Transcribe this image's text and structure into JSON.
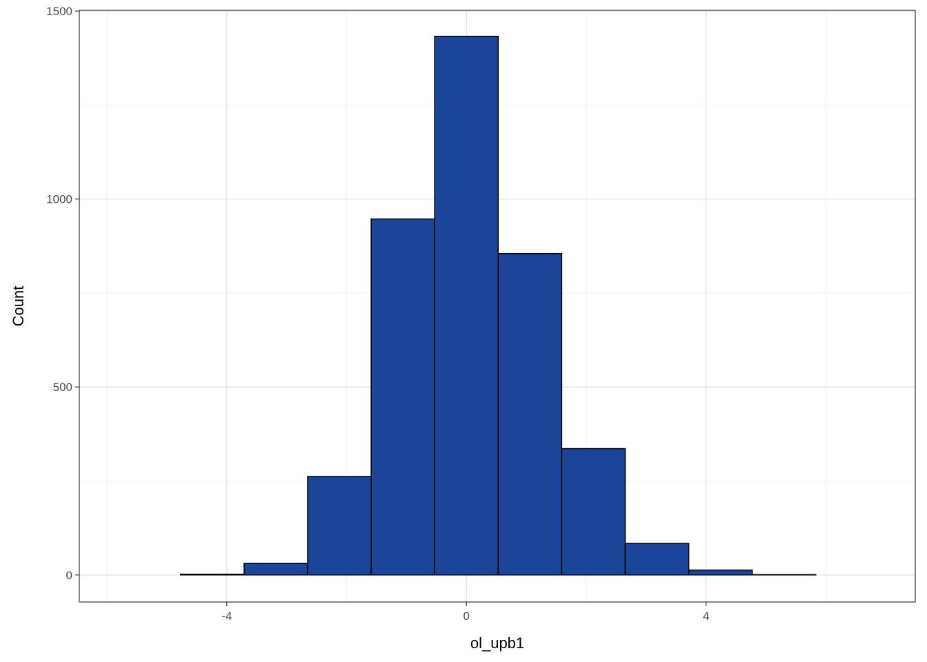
{
  "chart_data": {
    "type": "histogram",
    "x_label": "ol_upb1",
    "y_label": "Count",
    "bins": [
      -5.83,
      -4.77,
      -3.71,
      -2.65,
      -1.59,
      -0.53,
      0.53,
      1.59,
      2.65,
      3.71,
      4.77,
      5.83,
      6.89
    ],
    "values": [
      0,
      2,
      31,
      262,
      947,
      1433,
      855,
      336,
      84,
      13,
      1,
      0
    ],
    "color": "#1a4599",
    "edge_color": "#000000",
    "xlim": [
      -6.46,
      7.49
    ],
    "ylim": [
      -72,
      1502
    ],
    "xticks": [
      -4,
      0,
      4
    ],
    "yticks": [
      0,
      500,
      1000,
      1500
    ],
    "xminor": [
      -6,
      -2,
      2,
      6
    ],
    "yminor": [
      250,
      750,
      1250
    ],
    "grid": true
  }
}
